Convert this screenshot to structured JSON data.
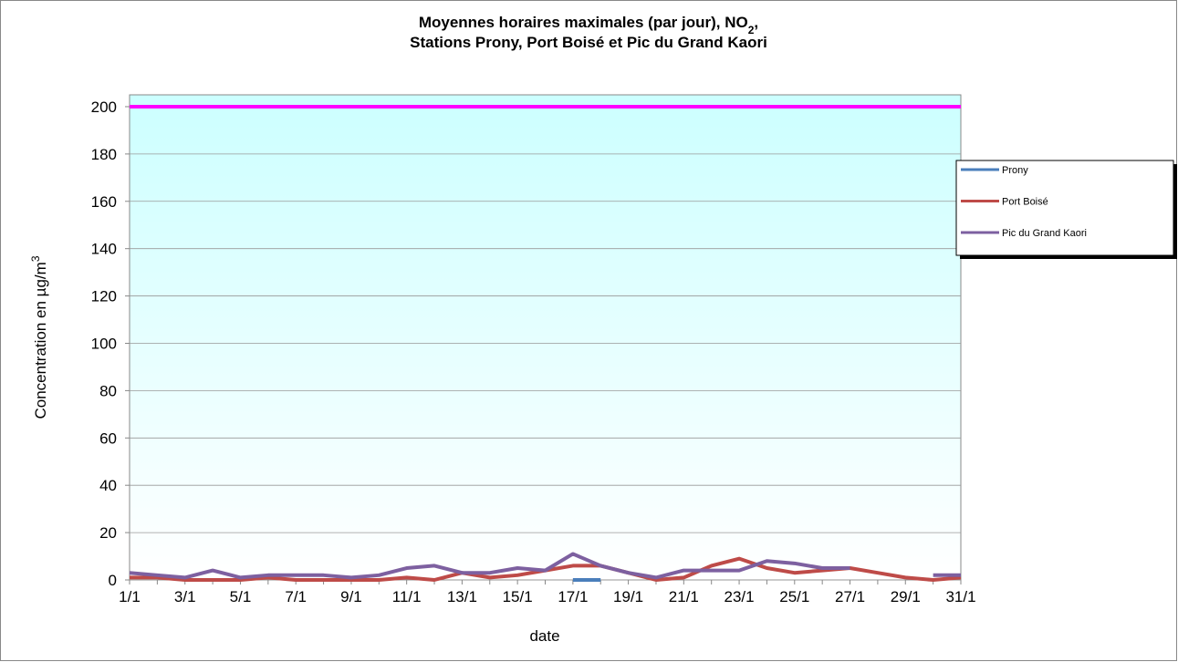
{
  "chart_data": {
    "type": "line",
    "title": {
      "line1": "Moyennes horaires maximales (par jour), NO",
      "line1_sub": "2",
      "line1_end": ",",
      "line2": "Stations Prony, Port Boisé et Pic du Grand Kaori"
    },
    "y_label": {
      "text": "Concentration en µg/m",
      "sup": "3"
    },
    "x_label": "date",
    "categories": [
      "1/1",
      null,
      "3/1",
      null,
      "5/1",
      null,
      "7/1",
      null,
      "9/1",
      null,
      "11/1",
      null,
      "13/1",
      null,
      "15/1",
      null,
      "17/1",
      null,
      "19/1",
      null,
      "21/1",
      null,
      "23/1",
      null,
      "25/1",
      null,
      "27/1",
      null,
      "29/1",
      null,
      "31/1"
    ],
    "series": [
      {
        "name": "Prony",
        "color": "#4a7ebb",
        "values": [
          null,
          null,
          null,
          null,
          null,
          null,
          null,
          null,
          null,
          null,
          null,
          null,
          null,
          null,
          null,
          null,
          0,
          0,
          null,
          null,
          null,
          null,
          null,
          null,
          null,
          null,
          null,
          null,
          null,
          null,
          null
        ]
      },
      {
        "name": "Port Boisé",
        "color": "#be4b48",
        "values": [
          1,
          1,
          0,
          0,
          0,
          1,
          0,
          0,
          0,
          0,
          1,
          0,
          3,
          1,
          2,
          4,
          6,
          6,
          3,
          0,
          1,
          6,
          9,
          5,
          3,
          4,
          5,
          3,
          1,
          0,
          1
        ]
      },
      {
        "name": "Pic du Grand Kaori",
        "color": "#7d60a0",
        "values": [
          3,
          2,
          1,
          4,
          1,
          2,
          2,
          2,
          1,
          2,
          5,
          6,
          3,
          3,
          5,
          4,
          11,
          6,
          3,
          1,
          4,
          4,
          4,
          8,
          7,
          5,
          5,
          null,
          null,
          2,
          2
        ]
      }
    ],
    "threshold": {
      "value": 200,
      "color": "#ff00ff"
    },
    "ylim": [
      0,
      205
    ],
    "yticks": [
      0,
      20,
      40,
      60,
      80,
      100,
      120,
      140,
      160,
      180,
      200
    ],
    "grid": true,
    "legend": "right"
  }
}
